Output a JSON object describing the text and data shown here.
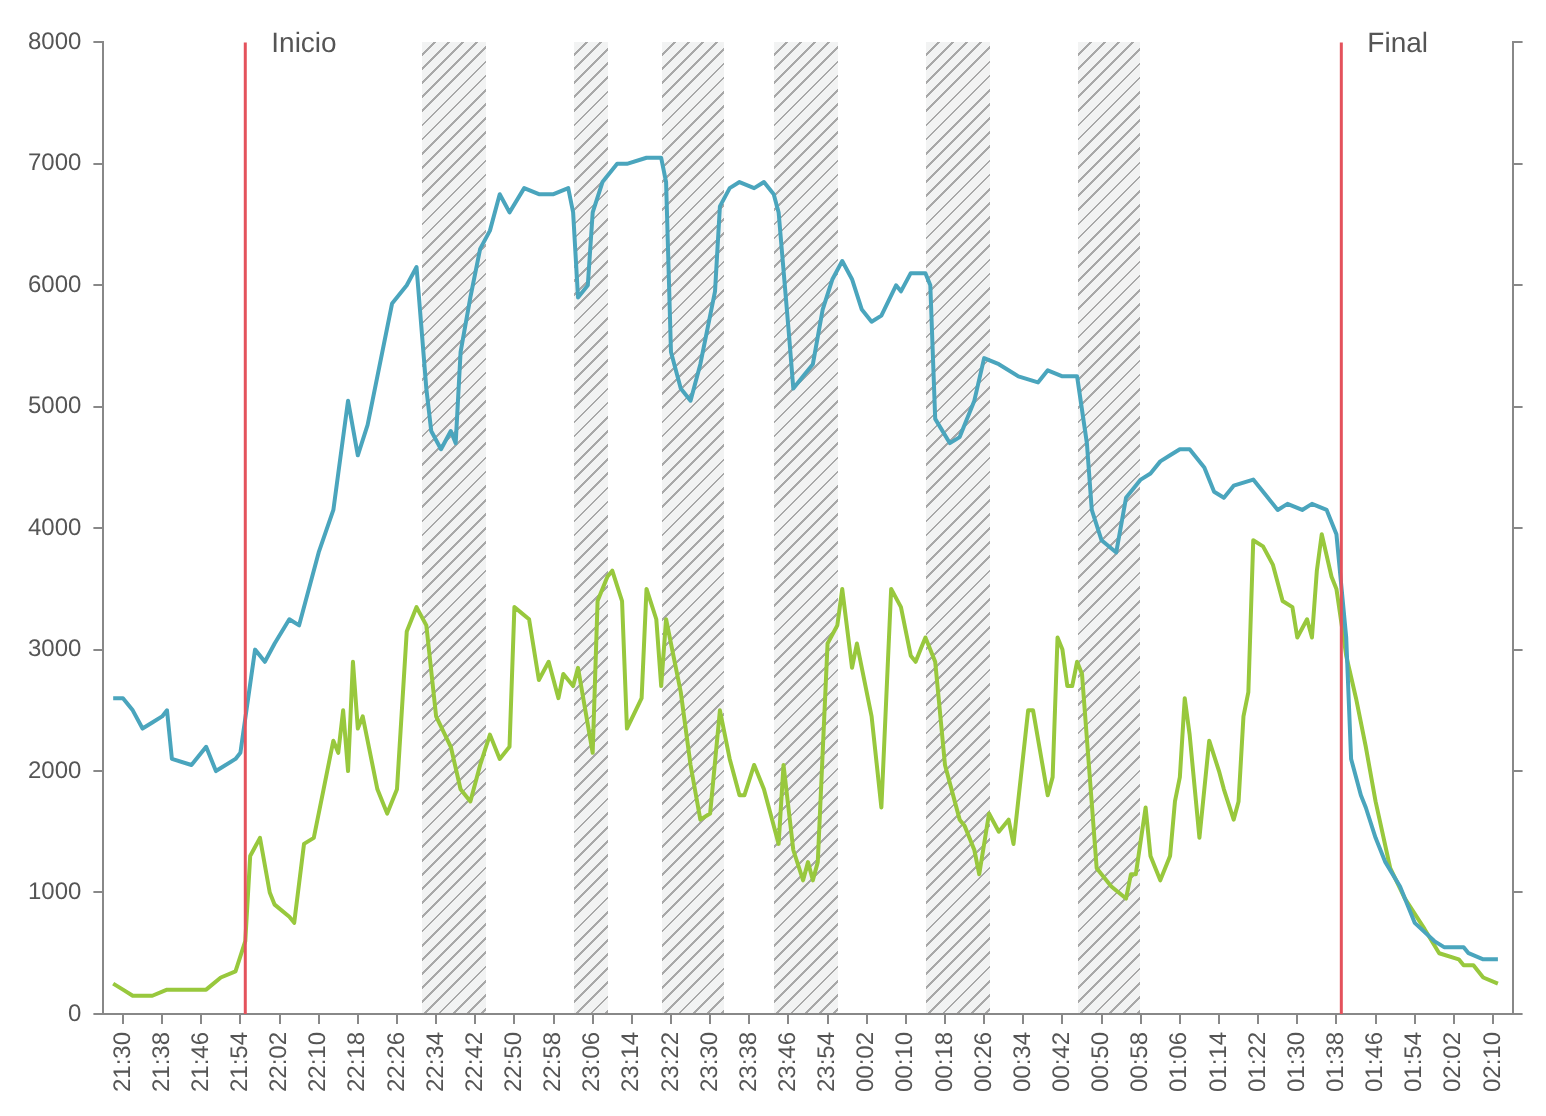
{
  "chart_data": {
    "type": "line",
    "xlim": [
      "2000-01-01T21:26",
      "2000-01-02T02:14"
    ],
    "xticks": [
      {
        "value": "2000-01-01T21:30",
        "label": "21:30"
      },
      {
        "value": "2000-01-01T21:38",
        "label": "21:38"
      },
      {
        "value": "2000-01-01T21:46",
        "label": "21:46"
      },
      {
        "value": "2000-01-01T21:54",
        "label": "21:54"
      },
      {
        "value": "2000-01-01T22:02",
        "label": "22:02"
      },
      {
        "value": "2000-01-01T22:10",
        "label": "22:10"
      },
      {
        "value": "2000-01-01T22:18",
        "label": "22:18"
      },
      {
        "value": "2000-01-01T22:26",
        "label": "22:26"
      },
      {
        "value": "2000-01-01T22:34",
        "label": "22:34"
      },
      {
        "value": "2000-01-01T22:42",
        "label": "22:42"
      },
      {
        "value": "2000-01-01T22:50",
        "label": "22:50"
      },
      {
        "value": "2000-01-01T22:58",
        "label": "22:58"
      },
      {
        "value": "2000-01-01T23:06",
        "label": "23:06"
      },
      {
        "value": "2000-01-01T23:14",
        "label": "23:14"
      },
      {
        "value": "2000-01-01T23:22",
        "label": "23:22"
      },
      {
        "value": "2000-01-01T23:30",
        "label": "23:30"
      },
      {
        "value": "2000-01-01T23:38",
        "label": "23:38"
      },
      {
        "value": "2000-01-01T23:46",
        "label": "23:46"
      },
      {
        "value": "2000-01-01T23:54",
        "label": "23:54"
      },
      {
        "value": "2000-01-02T00:02",
        "label": "00:02"
      },
      {
        "value": "2000-01-02T00:10",
        "label": "00:10"
      },
      {
        "value": "2000-01-02T00:18",
        "label": "00:18"
      },
      {
        "value": "2000-01-02T00:26",
        "label": "00:26"
      },
      {
        "value": "2000-01-02T00:34",
        "label": "00:34"
      },
      {
        "value": "2000-01-02T00:42",
        "label": "00:42"
      },
      {
        "value": "2000-01-02T00:50",
        "label": "00:50"
      },
      {
        "value": "2000-01-02T00:58",
        "label": "00:58"
      },
      {
        "value": "2000-01-02T01:06",
        "label": "01:06"
      },
      {
        "value": "2000-01-02T01:14",
        "label": "01:14"
      },
      {
        "value": "2000-01-02T01:22",
        "label": "01:22"
      },
      {
        "value": "2000-01-02T01:30",
        "label": "01:30"
      },
      {
        "value": "2000-01-02T01:38",
        "label": "01:38"
      },
      {
        "value": "2000-01-02T01:46",
        "label": "01:46"
      },
      {
        "value": "2000-01-02T01:54",
        "label": "01:54"
      },
      {
        "value": "2000-01-02T02:02",
        "label": "02:02"
      },
      {
        "value": "2000-01-02T02:10",
        "label": "02:10"
      }
    ],
    "ylim": [
      0,
      8000
    ],
    "yticks": [
      0,
      1000,
      2000,
      3000,
      4000,
      5000,
      6000,
      7000,
      8000
    ],
    "grid": false,
    "legend": false,
    "marker": "none",
    "line_style": "solid",
    "ref_lines": [
      {
        "axis": "x",
        "value": "2000-01-01T21:55",
        "label": "Inicio",
        "color": "#e4525c"
      },
      {
        "axis": "x",
        "value": "2000-01-02T01:39",
        "label": "Final",
        "color": "#e4525c"
      }
    ],
    "bands": [
      {
        "axis": "x",
        "from": "2000-01-01T22:31",
        "to": "2000-01-01T22:44",
        "color": "#f2f3f3"
      },
      {
        "axis": "x",
        "from": "2000-01-01T23:02",
        "to": "2000-01-01T23:09",
        "color": "#f2f3f3"
      },
      {
        "axis": "x",
        "from": "2000-01-01T23:20",
        "to": "2000-01-01T23:33",
        "color": "#f2f3f3"
      },
      {
        "axis": "x",
        "from": "2000-01-01T23:43",
        "to": "2000-01-01T23:56",
        "color": "#f2f3f3"
      },
      {
        "axis": "x",
        "from": "2000-01-02T00:14",
        "to": "2000-01-02T00:27",
        "color": "#f2f3f3"
      },
      {
        "axis": "x",
        "from": "2000-01-02T00:45",
        "to": "2000-01-02T00:58",
        "color": "#f2f3f3"
      }
    ],
    "series": [
      {
        "color": "#4aa5bd",
        "x": [
          "2000-01-01T21:28",
          "2000-01-01T21:30",
          "2000-01-01T21:32",
          "2000-01-01T21:34",
          "2000-01-01T21:36",
          "2000-01-01T21:38",
          "2000-01-01T21:39",
          "2000-01-01T21:40",
          "2000-01-01T21:44",
          "2000-01-01T21:47",
          "2000-01-01T21:49",
          "2000-01-01T21:53",
          "2000-01-01T21:54",
          "2000-01-01T21:57",
          "2000-01-01T21:59",
          "2000-01-01T22:01",
          "2000-01-01T22:04",
          "2000-01-01T22:06",
          "2000-01-01T22:10",
          "2000-01-01T22:13",
          "2000-01-01T22:14",
          "2000-01-01T22:16",
          "2000-01-01T22:18",
          "2000-01-01T22:20",
          "2000-01-01T22:21",
          "2000-01-01T22:25",
          "2000-01-01T22:28",
          "2000-01-01T22:30",
          "2000-01-01T22:32",
          "2000-01-01T22:33",
          "2000-01-01T22:35",
          "2000-01-01T22:37",
          "2000-01-01T22:38",
          "2000-01-01T22:39",
          "2000-01-01T22:41",
          "2000-01-01T22:43",
          "2000-01-01T22:45",
          "2000-01-01T22:47",
          "2000-01-01T22:49",
          "2000-01-01T22:52",
          "2000-01-01T22:55",
          "2000-01-01T22:58",
          "2000-01-01T23:01",
          "2000-01-01T23:02",
          "2000-01-01T23:03",
          "2000-01-01T23:05",
          "2000-01-01T23:06",
          "2000-01-01T23:08",
          "2000-01-01T23:11",
          "2000-01-01T23:13",
          "2000-01-01T23:17",
          "2000-01-01T23:20",
          "2000-01-01T23:21",
          "2000-01-01T23:22",
          "2000-01-01T23:24",
          "2000-01-01T23:26",
          "2000-01-01T23:28",
          "2000-01-01T23:31",
          "2000-01-01T23:32",
          "2000-01-01T23:34",
          "2000-01-01T23:36",
          "2000-01-01T23:39",
          "2000-01-01T23:41",
          "2000-01-01T23:43",
          "2000-01-01T23:44",
          "2000-01-01T23:46",
          "2000-01-01T23:47",
          "2000-01-01T23:49",
          "2000-01-01T23:51",
          "2000-01-01T23:53",
          "2000-01-01T23:55",
          "2000-01-01T23:57",
          "2000-01-01T23:59",
          "2000-01-02T00:01",
          "2000-01-02T00:03",
          "2000-01-02T00:05",
          "2000-01-02T00:08",
          "2000-01-02T00:09",
          "2000-01-02T00:11",
          "2000-01-02T00:14",
          "2000-01-02T00:15",
          "2000-01-02T00:16",
          "2000-01-02T00:19",
          "2000-01-02T00:21",
          "2000-01-02T00:24",
          "2000-01-02T00:26",
          "2000-01-02T00:29",
          "2000-01-02T00:33",
          "2000-01-02T00:37",
          "2000-01-02T00:39",
          "2000-01-02T00:42",
          "2000-01-02T00:45",
          "2000-01-02T00:47",
          "2000-01-02T00:48",
          "2000-01-02T00:50",
          "2000-01-02T00:53",
          "2000-01-02T00:55",
          "2000-01-02T00:58",
          "2000-01-02T01:00",
          "2000-01-02T01:02",
          "2000-01-02T01:04",
          "2000-01-02T01:06",
          "2000-01-02T01:08",
          "2000-01-02T01:11",
          "2000-01-02T01:13",
          "2000-01-02T01:15",
          "2000-01-02T01:17",
          "2000-01-02T01:21",
          "2000-01-02T01:24",
          "2000-01-02T01:26",
          "2000-01-02T01:28",
          "2000-01-02T01:31",
          "2000-01-02T01:33",
          "2000-01-02T01:36",
          "2000-01-02T01:38",
          "2000-01-02T01:40",
          "2000-01-02T01:41",
          "2000-01-02T01:43",
          "2000-01-02T01:44",
          "2000-01-02T01:46",
          "2000-01-02T01:48",
          "2000-01-02T01:51",
          "2000-01-02T01:54",
          "2000-01-02T01:58",
          "2000-01-02T02:00",
          "2000-01-02T02:04",
          "2000-01-02T02:05",
          "2000-01-02T02:08",
          "2000-01-02T02:11"
        ],
        "values": [
          2600,
          2600,
          2500,
          2350,
          2400,
          2450,
          2500,
          2100,
          2050,
          2200,
          2000,
          2100,
          2150,
          3000,
          2900,
          3050,
          3250,
          3200,
          3800,
          4150,
          4450,
          5050,
          4600,
          4850,
          5050,
          5850,
          6000,
          6150,
          5150,
          4800,
          4650,
          4800,
          4700,
          5450,
          5900,
          6300,
          6450,
          6750,
          6600,
          6800,
          6750,
          6750,
          6800,
          6600,
          5900,
          6000,
          6600,
          6850,
          7000,
          7000,
          7050,
          7050,
          6850,
          5450,
          5150,
          5050,
          5350,
          5950,
          6650,
          6800,
          6850,
          6800,
          6850,
          6750,
          6600,
          5650,
          5150,
          5250,
          5350,
          5800,
          6050,
          6200,
          6050,
          5800,
          5700,
          5750,
          6000,
          5950,
          6100,
          6100,
          6000,
          4900,
          4700,
          4750,
          5050,
          5400,
          5350,
          5250,
          5200,
          5300,
          5250,
          5250,
          4700,
          4150,
          3900,
          3800,
          4250,
          4400,
          4450,
          4550,
          4600,
          4650,
          4650,
          4500,
          4300,
          4250,
          4350,
          4400,
          4250,
          4150,
          4200,
          4150,
          4200,
          4150,
          3950,
          3100,
          2100,
          1800,
          1700,
          1450,
          1250,
          1050,
          750,
          600,
          550,
          550,
          500,
          450,
          450
        ]
      },
      {
        "color": "#98c83d",
        "x": [
          "2000-01-01T21:28",
          "2000-01-01T21:30",
          "2000-01-01T21:32",
          "2000-01-01T21:36",
          "2000-01-01T21:39",
          "2000-01-01T21:43",
          "2000-01-01T21:47",
          "2000-01-01T21:50",
          "2000-01-01T21:53",
          "2000-01-01T21:55",
          "2000-01-01T21:56",
          "2000-01-01T21:58",
          "2000-01-01T22:00",
          "2000-01-01T22:01",
          "2000-01-01T22:04",
          "2000-01-01T22:05",
          "2000-01-01T22:07",
          "2000-01-01T22:09",
          "2000-01-01T22:11",
          "2000-01-01T22:13",
          "2000-01-01T22:14",
          "2000-01-01T22:15",
          "2000-01-01T22:16",
          "2000-01-01T22:17",
          "2000-01-01T22:18",
          "2000-01-01T22:19",
          "2000-01-01T22:22",
          "2000-01-01T22:24",
          "2000-01-01T22:26",
          "2000-01-01T22:28",
          "2000-01-01T22:29",
          "2000-01-01T22:30",
          "2000-01-01T22:32",
          "2000-01-01T22:34",
          "2000-01-01T22:37",
          "2000-01-01T22:39",
          "2000-01-01T22:41",
          "2000-01-01T22:43",
          "2000-01-01T22:45",
          "2000-01-01T22:47",
          "2000-01-01T22:49",
          "2000-01-01T22:50",
          "2000-01-01T22:53",
          "2000-01-01T22:55",
          "2000-01-01T22:57",
          "2000-01-01T22:59",
          "2000-01-01T23:00",
          "2000-01-01T23:02",
          "2000-01-01T23:03",
          "2000-01-01T23:06",
          "2000-01-01T23:07",
          "2000-01-01T23:09",
          "2000-01-01T23:10",
          "2000-01-01T23:12",
          "2000-01-01T23:13",
          "2000-01-01T23:16",
          "2000-01-01T23:17",
          "2000-01-01T23:19",
          "2000-01-01T23:20",
          "2000-01-01T23:21",
          "2000-01-01T23:24",
          "2000-01-01T23:26",
          "2000-01-01T23:28",
          "2000-01-01T23:30",
          "2000-01-01T23:32",
          "2000-01-01T23:34",
          "2000-01-01T23:36",
          "2000-01-01T23:37",
          "2000-01-01T23:39",
          "2000-01-01T23:41",
          "2000-01-01T23:44",
          "2000-01-01T23:45",
          "2000-01-01T23:47",
          "2000-01-01T23:49",
          "2000-01-01T23:50",
          "2000-01-01T23:51",
          "2000-01-01T23:52",
          "2000-01-01T23:54",
          "2000-01-01T23:56",
          "2000-01-01T23:57",
          "2000-01-01T23:59",
          "2000-01-02T00:00",
          "2000-01-02T00:03",
          "2000-01-02T00:05",
          "2000-01-02T00:07",
          "2000-01-02T00:09",
          "2000-01-02T00:11",
          "2000-01-02T00:12",
          "2000-01-02T00:13",
          "2000-01-02T00:14",
          "2000-01-02T00:16",
          "2000-01-02T00:18",
          "2000-01-02T00:21",
          "2000-01-02T00:22",
          "2000-01-02T00:24",
          "2000-01-02T00:25",
          "2000-01-02T00:27",
          "2000-01-02T00:29",
          "2000-01-02T00:31",
          "2000-01-02T00:32",
          "2000-01-02T00:35",
          "2000-01-02T00:36",
          "2000-01-02T00:39",
          "2000-01-02T00:40",
          "2000-01-02T00:41",
          "2000-01-02T00:42",
          "2000-01-02T00:43",
          "2000-01-02T00:44",
          "2000-01-02T00:45",
          "2000-01-02T00:46",
          "2000-01-02T00:49",
          "2000-01-02T00:52",
          "2000-01-02T00:55",
          "2000-01-02T00:56",
          "2000-01-02T00:57",
          "2000-01-02T00:59",
          "2000-01-02T01:00",
          "2000-01-02T01:02",
          "2000-01-02T01:04",
          "2000-01-02T01:05",
          "2000-01-02T01:06",
          "2000-01-02T01:07",
          "2000-01-02T01:08",
          "2000-01-02T01:10",
          "2000-01-02T01:12",
          "2000-01-02T01:14",
          "2000-01-02T01:15",
          "2000-01-02T01:17",
          "2000-01-02T01:18",
          "2000-01-02T01:19",
          "2000-01-02T01:20",
          "2000-01-02T01:21",
          "2000-01-02T01:23",
          "2000-01-02T01:25",
          "2000-01-02T01:26",
          "2000-01-02T01:27",
          "2000-01-02T01:29",
          "2000-01-02T01:30",
          "2000-01-02T01:32",
          "2000-01-02T01:33",
          "2000-01-02T01:34",
          "2000-01-02T01:35",
          "2000-01-02T01:37",
          "2000-01-02T01:38",
          "2000-01-02T01:40",
          "2000-01-02T01:42",
          "2000-01-02T01:44",
          "2000-01-02T01:46",
          "2000-01-02T01:49",
          "2000-01-02T01:52",
          "2000-01-02T01:56",
          "2000-01-02T01:59",
          "2000-01-02T02:03",
          "2000-01-02T02:04",
          "2000-01-02T02:06",
          "2000-01-02T02:08",
          "2000-01-02T02:11"
        ],
        "values": [
          250,
          200,
          150,
          150,
          200,
          200,
          200,
          300,
          350,
          600,
          1300,
          1450,
          1000,
          900,
          800,
          750,
          1400,
          1450,
          1850,
          2250,
          2150,
          2500,
          2000,
          2900,
          2350,
          2450,
          1850,
          1650,
          1850,
          3150,
          3250,
          3350,
          3200,
          2450,
          2200,
          1850,
          1750,
          2050,
          2300,
          2100,
          2200,
          3350,
          3250,
          2750,
          2900,
          2600,
          2800,
          2700,
          2850,
          2150,
          3400,
          3600,
          3650,
          3400,
          2350,
          2600,
          3500,
          3250,
          2700,
          3250,
          2650,
          2050,
          1600,
          1650,
          2500,
          2100,
          1800,
          1800,
          2050,
          1850,
          1400,
          2050,
          1350,
          1100,
          1250,
          1100,
          1250,
          3050,
          3200,
          3500,
          2850,
          3050,
          2450,
          1700,
          3500,
          3350,
          2950,
          2900,
          3000,
          3100,
          2900,
          2050,
          1600,
          1550,
          1350,
          1150,
          1650,
          1500,
          1600,
          1400,
          2500,
          2500,
          1800,
          1950,
          3100,
          3000,
          2700,
          2700,
          2900,
          2800,
          1200,
          1050,
          950,
          1150,
          1150,
          1700,
          1300,
          1100,
          1300,
          1750,
          1950,
          2600,
          2300,
          1450,
          2250,
          2000,
          1850,
          1600,
          1750,
          2450,
          2650,
          3900,
          3850,
          3700,
          3550,
          3400,
          3350,
          3100,
          3250,
          3100,
          3650,
          3950,
          3600,
          3500,
          2950,
          2600,
          2200,
          1750,
          1200,
          950,
          700,
          500,
          450,
          400,
          400,
          300,
          250
        ]
      }
    ]
  }
}
